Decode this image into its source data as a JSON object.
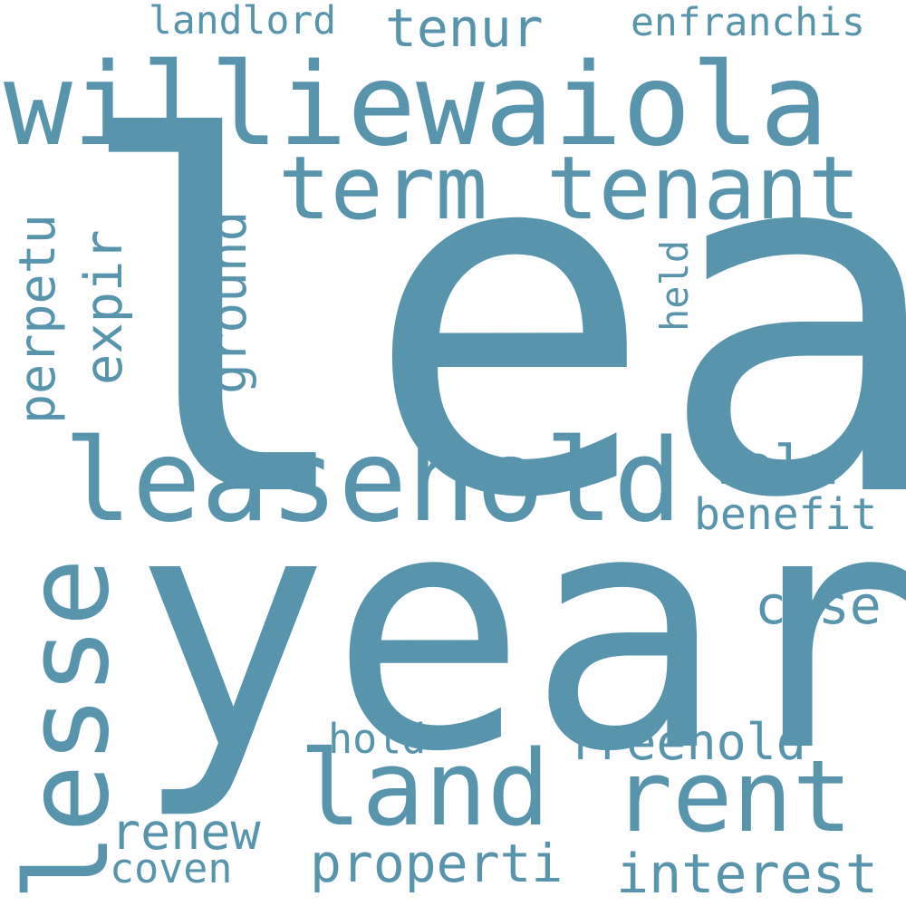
{
  "colors": {
    "background": "#ffffff",
    "word": "#5895ad"
  },
  "words": {
    "leas": "leas",
    "year": "year",
    "williewaiola": "williewaiola",
    "leasehold": "leasehold",
    "lesse": "lesse",
    "land": "land",
    "rent": "rent",
    "term": "term",
    "tenant": "tenant",
    "tenur": "tenur",
    "landlord": "landlord",
    "enfranchis": "enfranchis",
    "perpetu": "perpetu",
    "expir": "expir",
    "ground": "ground",
    "held": "held",
    "valu": "valu",
    "benefit": "benefit",
    "case": "case",
    "freehold": "freehold",
    "hold": "hold",
    "renew": "renew",
    "properti": "properti",
    "coven": "coven",
    "interest": "interest"
  }
}
